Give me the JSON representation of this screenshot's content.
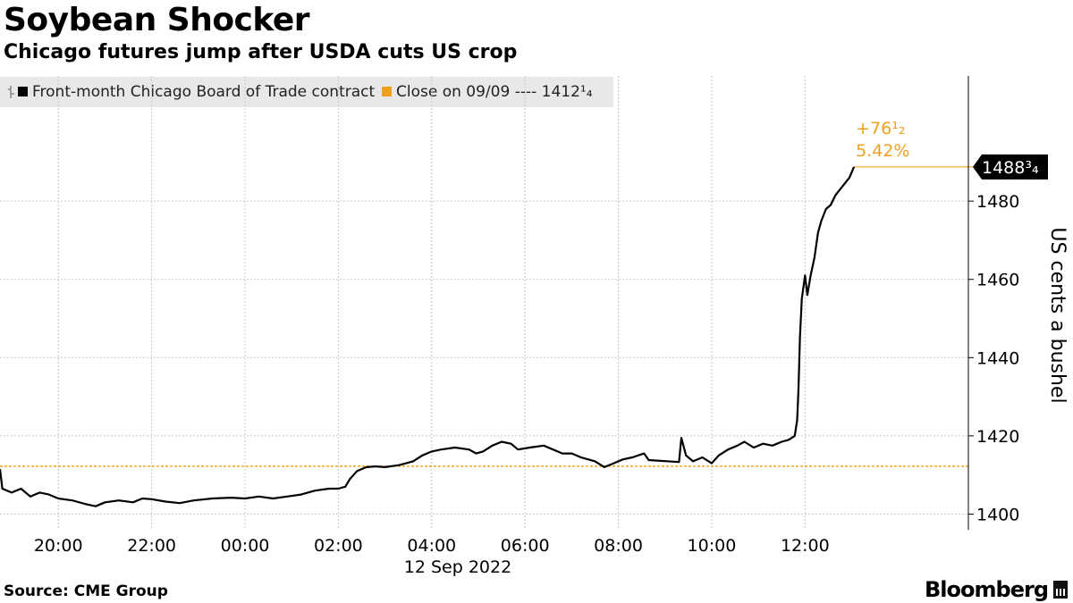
{
  "header": {
    "title": "Soybean Shocker",
    "subtitle": "Chicago futures jump after USDA cuts US crop"
  },
  "legend": {
    "series_label": "Front-month Chicago Board of Trade contract",
    "close_label": "Close on 09/09 ---- 1412¹₄"
  },
  "footer": {
    "source": "Source: CME Group",
    "brand": "Bloomberg"
  },
  "colors": {
    "series": "#000000",
    "reference": "#f0a020",
    "grid": "#c8c8c8",
    "last_tag_bg": "#000000",
    "last_tag_text": "#ffffff"
  },
  "chart_data": {
    "type": "line",
    "title": "Soybean Shocker",
    "subtitle": "Chicago futures jump after USDA cuts US crop",
    "xlabel": "12 Sep 2022",
    "ylabel": "US cents a bushel",
    "x_tick_labels": [
      "20:00",
      "22:00",
      "00:00",
      "02:00",
      "04:00",
      "06:00",
      "08:00",
      "10:00",
      "12:00"
    ],
    "x_tick_hours": [
      20,
      22,
      24,
      26,
      28,
      30,
      32,
      34,
      36
    ],
    "x_range_hours": [
      18.75,
      39.5
    ],
    "y_ticks": [
      1400,
      1420,
      1440,
      1460,
      1480
    ],
    "ylim": [
      1396,
      1512
    ],
    "grid": true,
    "legend_position": "top-left",
    "reference_line": {
      "label": "Close on 09/09",
      "value": 1412.25
    },
    "last_value": {
      "label": "1488³₄",
      "value": 1488.75
    },
    "change_label": "+76¹₂",
    "change_pct_label": "5.42%",
    "series": [
      {
        "name": "Front-month Chicago Board of Trade contract",
        "points": [
          [
            18.75,
            1411.5
          ],
          [
            18.8,
            1406.5
          ],
          [
            19.0,
            1405.5
          ],
          [
            19.2,
            1406.5
          ],
          [
            19.4,
            1404.5
          ],
          [
            19.6,
            1405.5
          ],
          [
            19.8,
            1405.0
          ],
          [
            20.0,
            1404.0
          ],
          [
            20.3,
            1403.5
          ],
          [
            20.6,
            1402.5
          ],
          [
            20.8,
            1402.0
          ],
          [
            21.0,
            1403.0
          ],
          [
            21.3,
            1403.5
          ],
          [
            21.6,
            1403.0
          ],
          [
            21.8,
            1404.0
          ],
          [
            22.0,
            1403.8
          ],
          [
            22.3,
            1403.2
          ],
          [
            22.6,
            1402.8
          ],
          [
            22.9,
            1403.5
          ],
          [
            23.3,
            1404.0
          ],
          [
            23.7,
            1404.2
          ],
          [
            24.0,
            1404.0
          ],
          [
            24.3,
            1404.5
          ],
          [
            24.6,
            1404.0
          ],
          [
            24.9,
            1404.5
          ],
          [
            25.2,
            1405.0
          ],
          [
            25.5,
            1406.0
          ],
          [
            25.8,
            1406.5
          ],
          [
            26.0,
            1406.5
          ],
          [
            26.15,
            1407.0
          ],
          [
            26.25,
            1409.0
          ],
          [
            26.4,
            1411.0
          ],
          [
            26.6,
            1412.0
          ],
          [
            26.8,
            1412.2
          ],
          [
            27.0,
            1412.0
          ],
          [
            27.3,
            1412.5
          ],
          [
            27.6,
            1413.5
          ],
          [
            27.8,
            1415.0
          ],
          [
            28.0,
            1416.0
          ],
          [
            28.2,
            1416.5
          ],
          [
            28.5,
            1417.0
          ],
          [
            28.8,
            1416.5
          ],
          [
            28.95,
            1415.5
          ],
          [
            29.1,
            1416.0
          ],
          [
            29.3,
            1417.5
          ],
          [
            29.5,
            1418.5
          ],
          [
            29.7,
            1418.0
          ],
          [
            29.85,
            1416.5
          ],
          [
            30.1,
            1417.0
          ],
          [
            30.4,
            1417.5
          ],
          [
            30.6,
            1416.5
          ],
          [
            30.8,
            1415.5
          ],
          [
            31.0,
            1415.5
          ],
          [
            31.2,
            1414.5
          ],
          [
            31.35,
            1414.0
          ],
          [
            31.5,
            1413.5
          ],
          [
            31.7,
            1412.0
          ],
          [
            31.9,
            1413.0
          ],
          [
            32.1,
            1414.0
          ],
          [
            32.3,
            1414.5
          ],
          [
            32.55,
            1415.5
          ],
          [
            32.65,
            1413.8
          ],
          [
            33.3,
            1413.3
          ],
          [
            33.35,
            1419.5
          ],
          [
            33.45,
            1415.0
          ],
          [
            33.6,
            1413.5
          ],
          [
            33.8,
            1414.5
          ],
          [
            34.0,
            1413.0
          ],
          [
            34.15,
            1415.0
          ],
          [
            34.35,
            1416.5
          ],
          [
            34.55,
            1417.5
          ],
          [
            34.7,
            1418.5
          ],
          [
            34.9,
            1417.0
          ],
          [
            35.1,
            1418.0
          ],
          [
            35.3,
            1417.5
          ],
          [
            35.5,
            1418.5
          ],
          [
            35.65,
            1419.0
          ],
          [
            35.78,
            1420.0
          ],
          [
            35.83,
            1424.0
          ],
          [
            35.86,
            1432.0
          ],
          [
            35.89,
            1445.0
          ],
          [
            35.93,
            1455.0
          ],
          [
            36.0,
            1461.0
          ],
          [
            36.05,
            1456.0
          ],
          [
            36.12,
            1461.0
          ],
          [
            36.2,
            1465.5
          ],
          [
            36.28,
            1472.0
          ],
          [
            36.35,
            1475.0
          ],
          [
            36.45,
            1478.0
          ],
          [
            36.55,
            1479.0
          ],
          [
            36.65,
            1481.5
          ],
          [
            36.75,
            1483.0
          ],
          [
            36.85,
            1484.5
          ],
          [
            36.95,
            1486.0
          ],
          [
            37.05,
            1488.75
          ]
        ]
      }
    ]
  }
}
